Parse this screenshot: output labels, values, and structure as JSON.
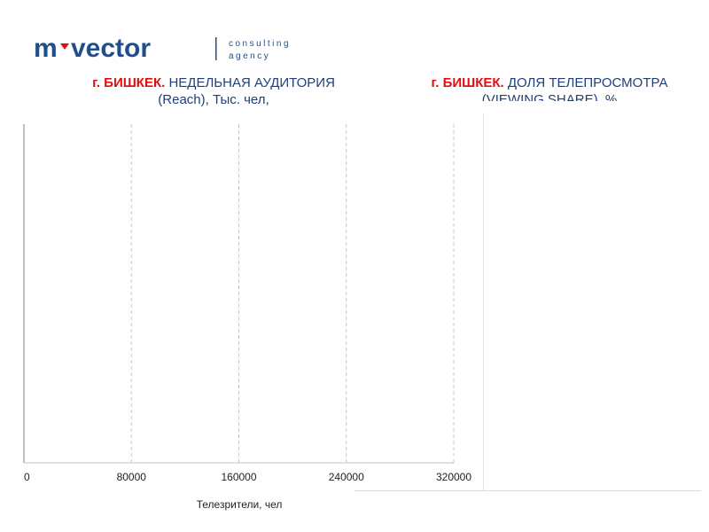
{
  "logo": {
    "brand_left": "m",
    "brand_right": "vector",
    "tag_line1": "consulting",
    "tag_line2": "agency"
  },
  "titles": {
    "left": {
      "city": "г. БИШКЕК.",
      "rest_line1": " НЕДЕЛЬНАЯ АУДИТОРИЯ",
      "line2": "(Reach), Тыс. чел,"
    },
    "right": {
      "city": "г. БИШКЕК.",
      "rest_line1": " ДОЛЯ ТЕЛЕПРОСМОТРА",
      "line2": "(VIEWING SHARE), %"
    }
  },
  "colors": {
    "brand_blue": "#1f4e8c",
    "brand_red": "#e01010",
    "grid": "#c8c8c8",
    "axis": "#808080"
  },
  "chart_data": {
    "type": "bar",
    "orientation": "horizontal",
    "categories": [],
    "series": [],
    "xlim": [
      0,
      320000
    ],
    "xticks": [
      0,
      80000,
      160000,
      240000,
      320000
    ],
    "xticklabels": [
      "0",
      "80000",
      "160000",
      "240000",
      "320000"
    ],
    "xlabel": "Телезрители, чел",
    "ylabel": "",
    "grid": "vertical-dashed"
  }
}
